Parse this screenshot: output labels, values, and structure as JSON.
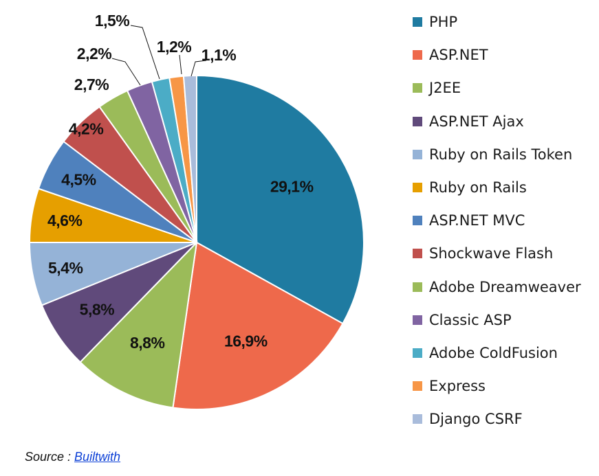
{
  "chart_data": {
    "type": "pie",
    "categories": [
      "PHP",
      "ASP.NET",
      "J2EE",
      "ASP.NET Ajax",
      "Ruby on Rails Token",
      "Ruby on Rails",
      "ASP.NET MVC",
      "Shockwave Flash",
      "Adobe Dreamweaver",
      "Classic ASP",
      "Adobe ColdFusion",
      "Express",
      "Django CSRF"
    ],
    "values": [
      29.1,
      16.9,
      8.8,
      5.8,
      5.4,
      4.6,
      4.5,
      4.2,
      2.7,
      2.2,
      1.5,
      1.2,
      1.1
    ],
    "data_labels": [
      "29,1%",
      "16,9%",
      "8,8%",
      "5,8%",
      "5,4%",
      "4,6%",
      "4,5%",
      "4,2%",
      "2,7%",
      "2,2%",
      "1,5%",
      "1,2%",
      "1,1%"
    ],
    "colors": [
      "#1F7BA1",
      "#EE694B",
      "#9BBB59",
      "#604A7B",
      "#95B3D7",
      "#E69F00",
      "#4F81BD",
      "#C0504D",
      "#9BBB59",
      "#8064A2",
      "#4BACC6",
      "#F79646",
      "#A9BCDB"
    ],
    "legend_position": "right",
    "start_angle": "12 o'clock",
    "direction": "clockwise"
  },
  "source": {
    "prefix": "Source : ",
    "link_text": "Builtwith"
  }
}
